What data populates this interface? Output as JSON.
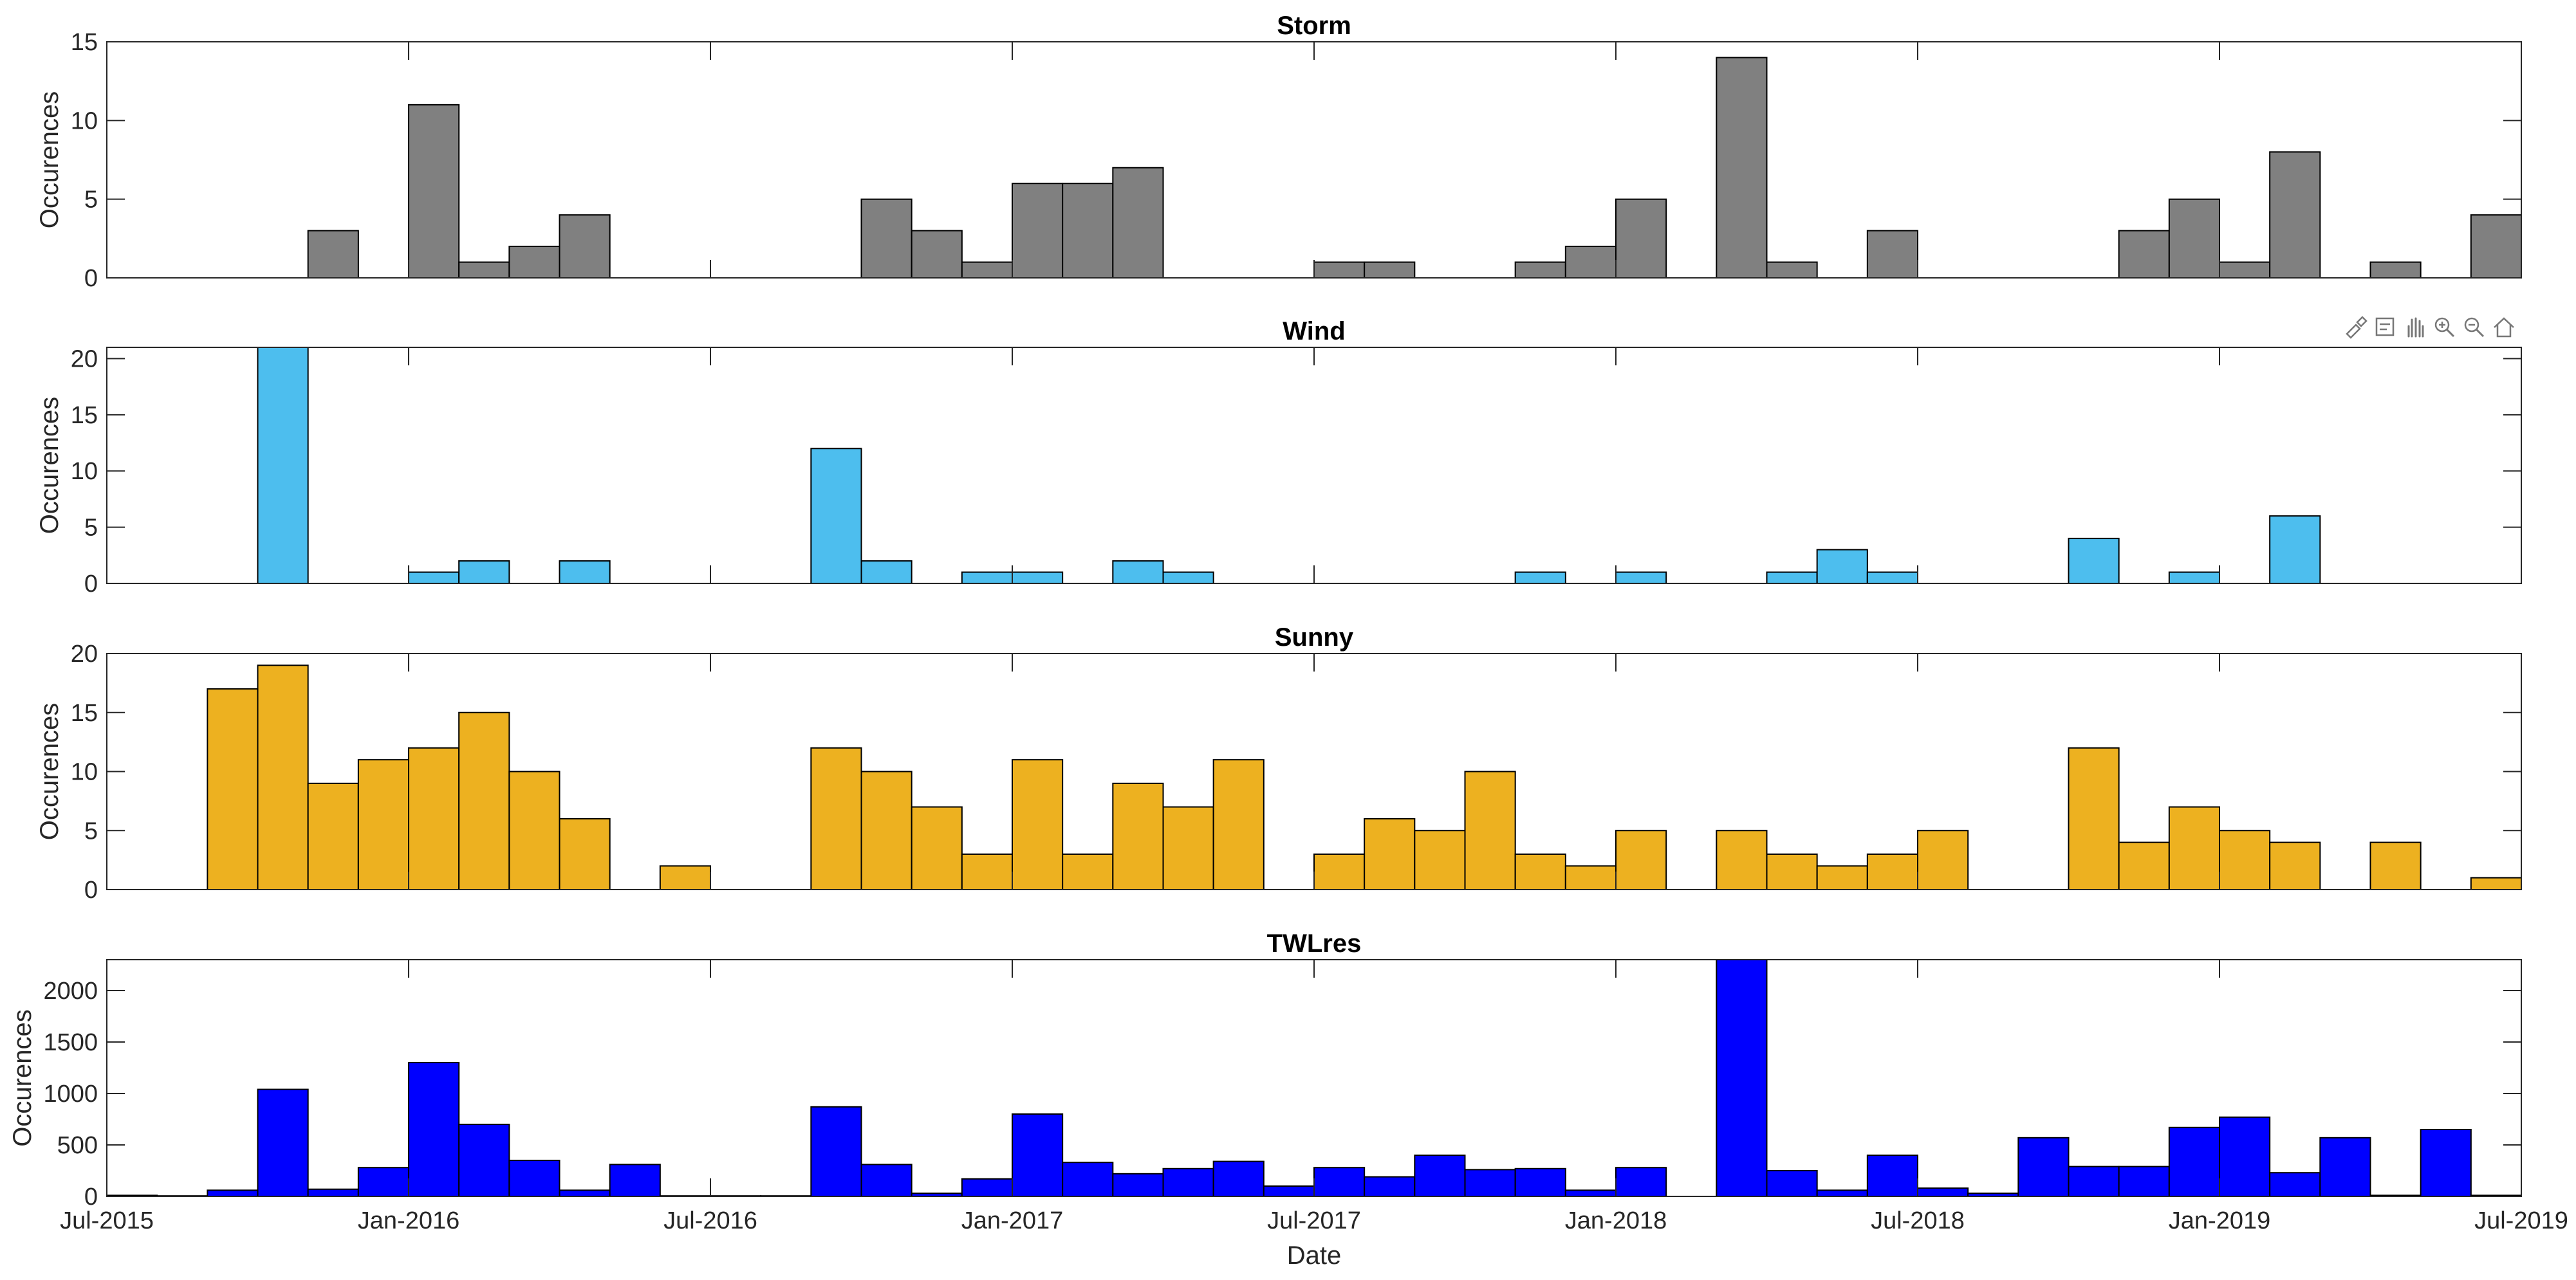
{
  "figure": {
    "xlabel": "Date",
    "ylabel": "Occurences",
    "x_ticks": [
      "Jul-2015",
      "Jan-2016",
      "Jul-2016",
      "Jan-2017",
      "Jul-2017",
      "Jan-2018",
      "Jul-2018",
      "Jan-2019",
      "Jul-2019"
    ]
  },
  "toolbar": {
    "icons": [
      "brush-icon",
      "datatip-icon",
      "pan-hand-icon",
      "zoom-in-icon",
      "zoom-out-icon",
      "home-icon"
    ]
  },
  "chart_data": [
    {
      "type": "bar",
      "title": "Storm",
      "xlabel": "",
      "ylabel": "Occurences",
      "color": "#808080",
      "bin_start": "Jul-2015",
      "bin_width_months": 1,
      "ylim": [
        0,
        15
      ],
      "yticks": [
        0,
        5,
        10,
        15
      ],
      "values": [
        0,
        0,
        0,
        0,
        3,
        0,
        11,
        1,
        2,
        4,
        0,
        0,
        0,
        0,
        0,
        5,
        3,
        1,
        6,
        6,
        7,
        0,
        0,
        0,
        1,
        1,
        0,
        0,
        1,
        2,
        5,
        0,
        14,
        1,
        0,
        3,
        0,
        0,
        0,
        0,
        3,
        5,
        1,
        8,
        0,
        1,
        0,
        4
      ]
    },
    {
      "type": "bar",
      "title": "Wind",
      "xlabel": "",
      "ylabel": "Occurences",
      "color": "#4DBEEE",
      "bin_start": "Jul-2015",
      "bin_width_months": 1,
      "ylim": [
        0,
        21
      ],
      "yticks": [
        0,
        5,
        10,
        15,
        20
      ],
      "values": [
        0,
        0,
        0,
        21,
        0,
        0,
        1,
        2,
        0,
        2,
        0,
        0,
        0,
        0,
        12,
        2,
        0,
        1,
        1,
        0,
        2,
        1,
        0,
        0,
        0,
        0,
        0,
        0,
        1,
        0,
        1,
        0,
        0,
        1,
        3,
        1,
        0,
        0,
        0,
        4,
        0,
        1,
        0,
        6,
        0,
        0,
        0,
        0
      ]
    },
    {
      "type": "bar",
      "title": "Sunny",
      "xlabel": "",
      "ylabel": "Occurences",
      "color": "#EDB120",
      "bin_start": "Jul-2015",
      "bin_width_months": 1,
      "ylim": [
        0,
        20
      ],
      "yticks": [
        0,
        5,
        10,
        15,
        20
      ],
      "values": [
        0,
        0,
        17,
        19,
        9,
        11,
        12,
        15,
        10,
        6,
        0,
        2,
        0,
        0,
        12,
        10,
        7,
        3,
        11,
        3,
        9,
        7,
        11,
        0,
        3,
        6,
        5,
        10,
        3,
        2,
        5,
        0,
        5,
        3,
        2,
        3,
        5,
        0,
        0,
        12,
        4,
        7,
        5,
        4,
        0,
        4,
        0,
        1
      ]
    },
    {
      "type": "bar",
      "title": "TWLres",
      "xlabel": "Date",
      "ylabel": "Occurences",
      "color": "#0000FF",
      "bin_start": "Jul-2015",
      "bin_width_months": 1,
      "ylim": [
        0,
        2300
      ],
      "yticks": [
        0,
        500,
        1000,
        1500,
        2000
      ],
      "values": [
        10,
        5,
        60,
        1040,
        70,
        280,
        1300,
        700,
        350,
        60,
        310,
        5,
        5,
        5,
        870,
        310,
        30,
        170,
        800,
        330,
        220,
        270,
        340,
        100,
        280,
        190,
        400,
        260,
        270,
        60,
        280,
        0,
        2300,
        250,
        60,
        400,
        80,
        30,
        570,
        290,
        290,
        670,
        770,
        230,
        570,
        10,
        650,
        10
      ]
    }
  ]
}
